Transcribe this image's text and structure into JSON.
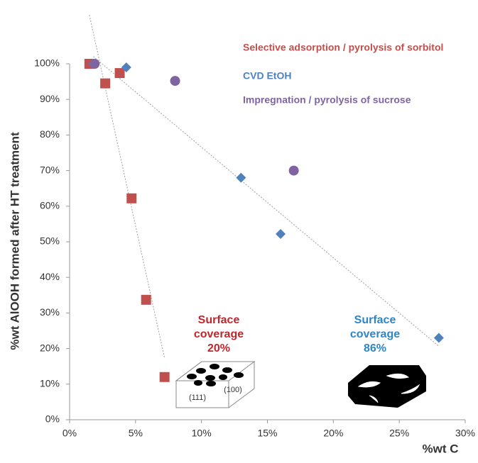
{
  "chart_data": {
    "type": "scatter",
    "x_label": "%wt C",
    "y_label": "%wt AlOOH formed after HT treatment",
    "xlim": [
      0,
      30
    ],
    "xticks": [
      {
        "value": 0,
        "label": "0%"
      },
      {
        "value": 5,
        "label": "5%"
      },
      {
        "value": 10,
        "label": "10%"
      },
      {
        "value": 15,
        "label": "15%"
      },
      {
        "value": 20,
        "label": "20%"
      },
      {
        "value": 25,
        "label": "25%"
      },
      {
        "value": 30,
        "label": "30%"
      }
    ],
    "ylim": [
      0,
      100
    ],
    "yticks": [
      {
        "value": 0,
        "label": "0%"
      },
      {
        "value": 10,
        "label": "10%"
      },
      {
        "value": 20,
        "label": "20%"
      },
      {
        "value": 30,
        "label": "30%"
      },
      {
        "value": 40,
        "label": "40%"
      },
      {
        "value": 50,
        "label": "50%"
      },
      {
        "value": 60,
        "label": "60%"
      },
      {
        "value": 70,
        "label": "70%"
      },
      {
        "value": 80,
        "label": "80%"
      },
      {
        "value": 90,
        "label": "90%"
      },
      {
        "value": 100,
        "label": "100%"
      }
    ],
    "grid": false,
    "series": [
      {
        "name": "Selective adsorption / pyrolysis of sorbitol",
        "color": "#c0504d",
        "marker": "square",
        "trendline": true,
        "trend_color": "#a0a0a0",
        "x": [
          1.5,
          2.7,
          3.8,
          4.7,
          5.8,
          7.2
        ],
        "values": [
          100,
          94.5,
          97.4,
          62.2,
          33.7,
          12
        ]
      },
      {
        "name": "CVD EtOH",
        "color": "#4f81bd",
        "marker": "diamond",
        "trendline": true,
        "trend_color": "#a0a0a0",
        "x": [
          1.8,
          4.3,
          13.0,
          16.0,
          28.0
        ],
        "values": [
          100,
          99,
          68,
          52.2,
          23
        ]
      },
      {
        "name": "Impregnation / pyrolysis of sucrose",
        "color": "#8064a2",
        "marker": "circle",
        "trendline": false,
        "x": [
          1.9,
          8.0,
          17.0
        ],
        "values": [
          100,
          95.2,
          70
        ]
      }
    ],
    "annotations": [
      {
        "lines": [
          "Surface",
          "coverage",
          "20%"
        ],
        "color": "#c0272d"
      },
      {
        "lines": [
          "Surface",
          "coverage",
          "86%"
        ],
        "color": "#2e86c8"
      },
      {
        "lines": [
          "(111)"
        ],
        "color": "#333333"
      },
      {
        "lines": [
          "(100)"
        ],
        "color": "#333333"
      }
    ]
  }
}
